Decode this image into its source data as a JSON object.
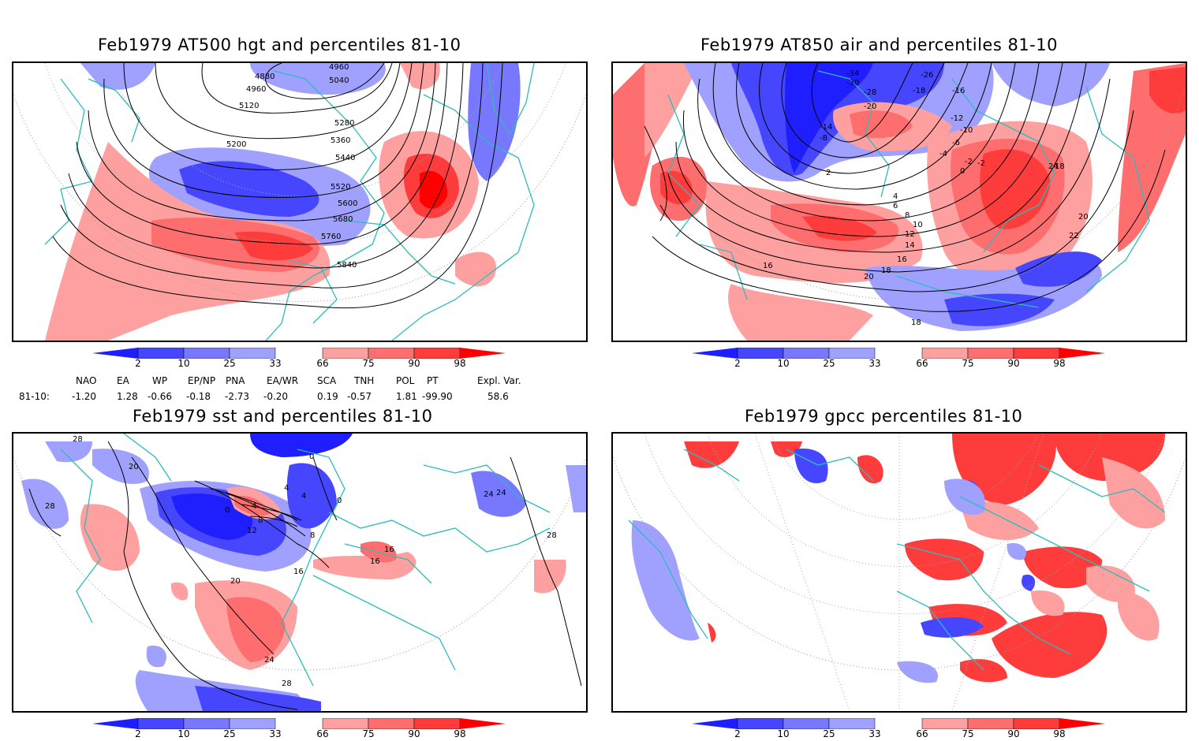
{
  "panels": [
    {
      "title": "Feb1979 AT500 hgt and percentiles 81-10",
      "contour_labels": [
        "4880",
        "4960",
        "4960",
        "5040",
        "5120",
        "5200",
        "5280",
        "5360",
        "5440",
        "5520",
        "5600",
        "5680",
        "5760",
        "5840"
      ]
    },
    {
      "title": "Feb1979 AT850 air and percentiles 81-10",
      "contour_labels": [
        "-34",
        "-30",
        "-26",
        "-28",
        "-20",
        "-18",
        "-16",
        "-14",
        "-12",
        "-10",
        "-8",
        "-6",
        "-4",
        "-2",
        "0",
        "2",
        "4",
        "6",
        "8",
        "10",
        "12",
        "14",
        "16",
        "18",
        "20",
        "22",
        "24",
        "16",
        "18",
        "20",
        "18",
        "-2"
      ]
    },
    {
      "title": "Feb1979 sst and percentiles 81-10",
      "contour_labels": [
        "28",
        "28",
        "20",
        "24",
        "0",
        "4",
        "8",
        "12",
        "16",
        "20",
        "24",
        "28",
        "0",
        "4",
        "4",
        "0",
        "8",
        "16",
        "16",
        "24",
        "28"
      ]
    },
    {
      "title": "Feb1979 gpcc percentiles 81-10",
      "contour_labels": []
    }
  ],
  "colorbar": {
    "ticks": [
      "2",
      "10",
      "25",
      "33",
      "66",
      "75",
      "90",
      "98"
    ],
    "colors": [
      "#1e1eff",
      "#4646ff",
      "#7878ff",
      "#a0a0ff",
      "#ffffff",
      "#ffa0a0",
      "#ff6e6e",
      "#ff3c3c",
      "#ff0000"
    ]
  },
  "indices": {
    "headers": [
      "NAO",
      "EA",
      "WP",
      "EP/NP",
      "PNA",
      "EA/WR",
      "SCA",
      "TNH",
      "POL",
      "PT",
      "Expl. Var."
    ],
    "row_label": "81-10:",
    "values": [
      "-1.20",
      "1.28",
      "-0.66",
      "-0.18",
      "-2.73",
      "-0.20",
      "0.19",
      "-0.57",
      "1.81",
      "-99.90",
      "58.6"
    ]
  }
}
